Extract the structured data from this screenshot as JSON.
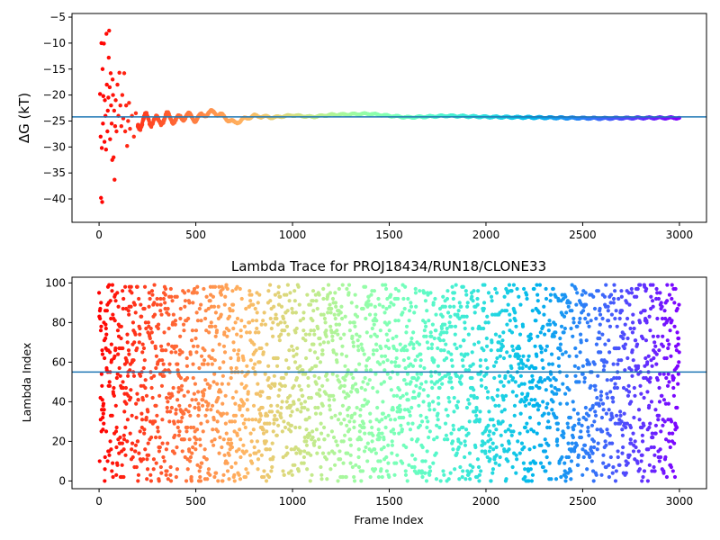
{
  "chart_data": [
    {
      "type": "scatter",
      "title": "",
      "xlabel": "",
      "ylabel": "ΔG (kT)",
      "xlim": [
        -140,
        3140
      ],
      "ylim": [
        -44.5,
        -4.3
      ],
      "xticks": [
        0,
        500,
        1000,
        1500,
        2000,
        2500,
        3000
      ],
      "xtick_labels": [
        "0",
        "500",
        "1000",
        "1500",
        "2000",
        "2500",
        "3000"
      ],
      "yticks": [
        -40,
        -35,
        -30,
        -25,
        -20,
        -15,
        -10,
        -5
      ],
      "ytick_labels": [
        "−40",
        "−35",
        "−30",
        "−25",
        "−20",
        "−15",
        "−10",
        "−5"
      ],
      "hline": -24.2,
      "colormap": "rainbow (red at frame 0 to violet at frame 3000)",
      "hline_color": "#1f77b4",
      "early_points": [
        {
          "x": 5,
          "y": -19.8
        },
        {
          "x": 8,
          "y": -28.0
        },
        {
          "x": 10,
          "y": -39.8
        },
        {
          "x": 12,
          "y": -10.0
        },
        {
          "x": 14,
          "y": -30.2
        },
        {
          "x": 16,
          "y": -40.6
        },
        {
          "x": 18,
          "y": -15.0
        },
        {
          "x": 20,
          "y": -25.5
        },
        {
          "x": 22,
          "y": -20.2
        },
        {
          "x": 25,
          "y": -10.1
        },
        {
          "x": 28,
          "y": -29.0
        },
        {
          "x": 30,
          "y": -21.0
        },
        {
          "x": 33,
          "y": -24.0
        },
        {
          "x": 36,
          "y": -30.5
        },
        {
          "x": 38,
          "y": -8.2
        },
        {
          "x": 40,
          "y": -18.0
        },
        {
          "x": 43,
          "y": -27.0
        },
        {
          "x": 45,
          "y": -23.0
        },
        {
          "x": 48,
          "y": -20.5
        },
        {
          "x": 50,
          "y": -12.8
        },
        {
          "x": 52,
          "y": -7.6
        },
        {
          "x": 55,
          "y": -18.5
        },
        {
          "x": 57,
          "y": -28.5
        },
        {
          "x": 60,
          "y": -15.8
        },
        {
          "x": 62,
          "y": -22.0
        },
        {
          "x": 65,
          "y": -25.5
        },
        {
          "x": 68,
          "y": -32.5
        },
        {
          "x": 70,
          "y": -17.0
        },
        {
          "x": 72,
          "y": -20.0
        },
        {
          "x": 75,
          "y": -32.0
        },
        {
          "x": 78,
          "y": -23.0
        },
        {
          "x": 80,
          "y": -36.3
        },
        {
          "x": 83,
          "y": -26.0
        },
        {
          "x": 86,
          "y": -21.0
        },
        {
          "x": 90,
          "y": -27.0
        },
        {
          "x": 95,
          "y": -18.0
        },
        {
          "x": 100,
          "y": -24.0
        },
        {
          "x": 105,
          "y": -15.7
        },
        {
          "x": 110,
          "y": -22.0
        },
        {
          "x": 115,
          "y": -26.0
        },
        {
          "x": 120,
          "y": -20.0
        },
        {
          "x": 125,
          "y": -24.5
        },
        {
          "x": 130,
          "y": -15.8
        },
        {
          "x": 135,
          "y": -27.0
        },
        {
          "x": 140,
          "y": -22.0
        },
        {
          "x": 145,
          "y": -29.8
        },
        {
          "x": 150,
          "y": -25.0
        },
        {
          "x": 155,
          "y": -21.5
        },
        {
          "x": 160,
          "y": -26.5
        },
        {
          "x": 170,
          "y": -24.0
        },
        {
          "x": 180,
          "y": -28.0
        },
        {
          "x": 190,
          "y": -23.5
        },
        {
          "x": 200,
          "y": -26.0
        }
      ],
      "dense_trace_anchors": [
        {
          "x": 200,
          "y": -25.5
        },
        {
          "x": 250,
          "y": -24.5
        },
        {
          "x": 300,
          "y": -25.2
        },
        {
          "x": 350,
          "y": -24.2
        },
        {
          "x": 400,
          "y": -24.8
        },
        {
          "x": 450,
          "y": -23.9
        },
        {
          "x": 500,
          "y": -24.6
        },
        {
          "x": 550,
          "y": -23.6
        },
        {
          "x": 600,
          "y": -23.3
        },
        {
          "x": 650,
          "y": -24.3
        },
        {
          "x": 700,
          "y": -25.4
        },
        {
          "x": 750,
          "y": -24.6
        },
        {
          "x": 800,
          "y": -24.0
        },
        {
          "x": 900,
          "y": -24.3
        },
        {
          "x": 1000,
          "y": -23.9
        },
        {
          "x": 1100,
          "y": -24.2
        },
        {
          "x": 1200,
          "y": -23.8
        },
        {
          "x": 1300,
          "y": -23.7
        },
        {
          "x": 1400,
          "y": -23.6
        },
        {
          "x": 1500,
          "y": -24.0
        },
        {
          "x": 1600,
          "y": -24.3
        },
        {
          "x": 1800,
          "y": -24.0
        },
        {
          "x": 2000,
          "y": -24.2
        },
        {
          "x": 2200,
          "y": -24.3
        },
        {
          "x": 2400,
          "y": -24.4
        },
        {
          "x": 2600,
          "y": -24.5
        },
        {
          "x": 2800,
          "y": -24.4
        },
        {
          "x": 3000,
          "y": -24.4
        }
      ],
      "dense_trace_early_wobble_until": 900
    },
    {
      "type": "scatter",
      "title": "Lambda Trace for PROJ18434/RUN18/CLONE33",
      "xlabel": "Frame Index",
      "ylabel": "Lambda Index",
      "xlim": [
        -140,
        3140
      ],
      "ylim": [
        -3.9,
        102.9
      ],
      "xticks": [
        0,
        500,
        1000,
        1500,
        2000,
        2500,
        3000
      ],
      "xtick_labels": [
        "0",
        "500",
        "1000",
        "1500",
        "2000",
        "2500",
        "3000"
      ],
      "yticks": [
        0,
        20,
        40,
        60,
        80,
        100
      ],
      "ytick_labels": [
        "0",
        "20",
        "40",
        "60",
        "80",
        "100"
      ],
      "hline": 55,
      "hline_color": "#1f77b4",
      "colormap": "rainbow (red at frame 0 to violet at frame 3000)",
      "description_of_distribution": "frames 0–3000, lambda indices spread roughly uniformly 0–99 (approx. 3000 points)",
      "n_points": 3000,
      "lambda_min": 0,
      "lambda_max": 99
    }
  ]
}
